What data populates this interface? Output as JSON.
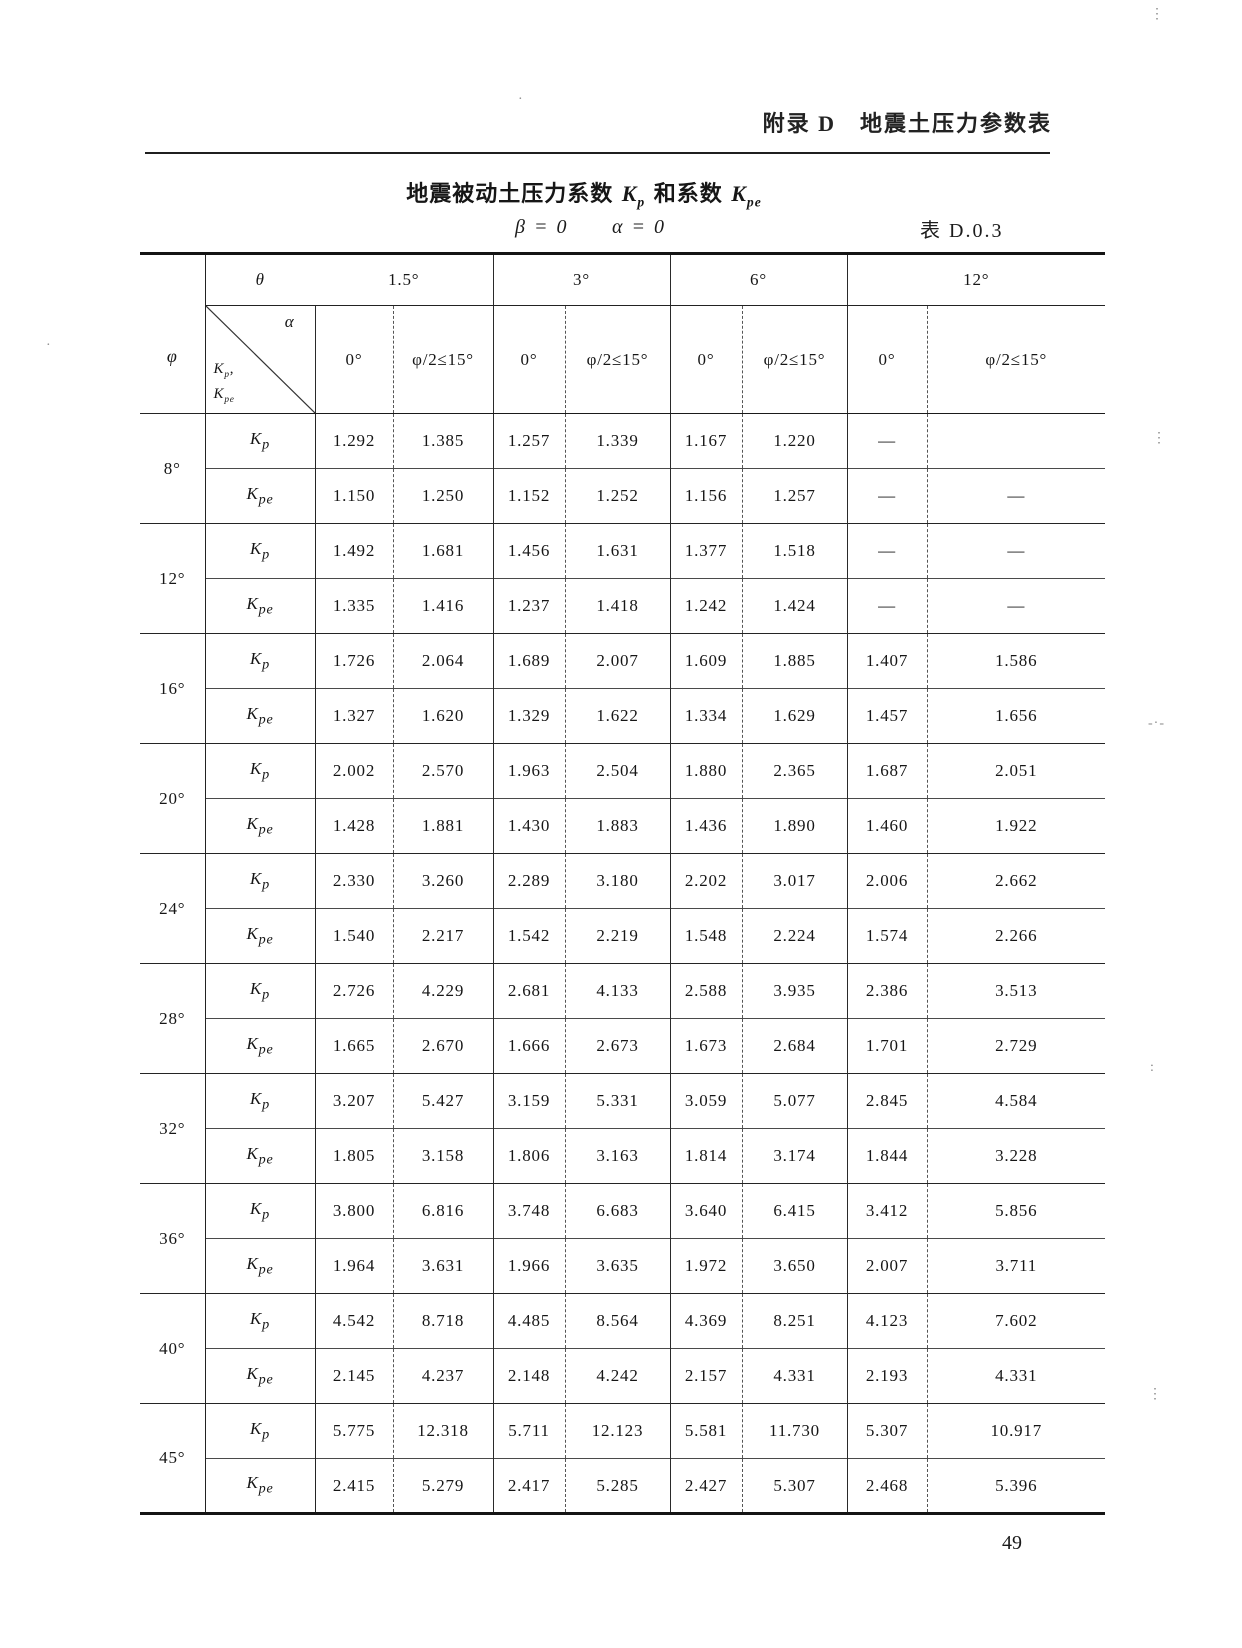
{
  "header": {
    "appendix_title": "附录 D　地震土压力参数表"
  },
  "page_number": "49",
  "table": {
    "title_prefix": "地震被动土压力系数",
    "title_mid": "和系数",
    "condition_beta": "β = 0",
    "condition_alpha": "α = 0",
    "table_no": "表 D.0.3",
    "corner": {
      "theta": "θ",
      "alpha": "α",
      "phi": "φ",
      "comma": ","
    },
    "coeff": {
      "kp": {
        "base": "K",
        "sub": "p"
      },
      "kpe": {
        "base": "K",
        "sub": "pe"
      }
    },
    "theta_values": [
      "1.5°",
      "3°",
      "6°",
      "12°"
    ],
    "alpha_values": [
      "0°",
      "φ/2≤15°"
    ],
    "rows": [
      {
        "phi": "8°",
        "kp": [
          "1.292",
          "1.385",
          "1.257",
          "1.339",
          "1.167",
          "1.220",
          "—",
          ""
        ],
        "kpe": [
          "1.150",
          "1.250",
          "1.152",
          "1.252",
          "1.156",
          "1.257",
          "—",
          "—"
        ]
      },
      {
        "phi": "12°",
        "kp": [
          "1.492",
          "1.681",
          "1.456",
          "1.631",
          "1.377",
          "1.518",
          "—",
          "—"
        ],
        "kpe": [
          "1.335",
          "1.416",
          "1.237",
          "1.418",
          "1.242",
          "1.424",
          "—",
          "—"
        ]
      },
      {
        "phi": "16°",
        "kp": [
          "1.726",
          "2.064",
          "1.689",
          "2.007",
          "1.609",
          "1.885",
          "1.407",
          "1.586"
        ],
        "kpe": [
          "1.327",
          "1.620",
          "1.329",
          "1.622",
          "1.334",
          "1.629",
          "1.457",
          "1.656"
        ]
      },
      {
        "phi": "20°",
        "kp": [
          "2.002",
          "2.570",
          "1.963",
          "2.504",
          "1.880",
          "2.365",
          "1.687",
          "2.051"
        ],
        "kpe": [
          "1.428",
          "1.881",
          "1.430",
          "1.883",
          "1.436",
          "1.890",
          "1.460",
          "1.922"
        ]
      },
      {
        "phi": "24°",
        "kp": [
          "2.330",
          "3.260",
          "2.289",
          "3.180",
          "2.202",
          "3.017",
          "2.006",
          "2.662"
        ],
        "kpe": [
          "1.540",
          "2.217",
          "1.542",
          "2.219",
          "1.548",
          "2.224",
          "1.574",
          "2.266"
        ]
      },
      {
        "phi": "28°",
        "kp": [
          "2.726",
          "4.229",
          "2.681",
          "4.133",
          "2.588",
          "3.935",
          "2.386",
          "3.513"
        ],
        "kpe": [
          "1.665",
          "2.670",
          "1.666",
          "2.673",
          "1.673",
          "2.684",
          "1.701",
          "2.729"
        ]
      },
      {
        "phi": "32°",
        "kp": [
          "3.207",
          "5.427",
          "3.159",
          "5.331",
          "3.059",
          "5.077",
          "2.845",
          "4.584"
        ],
        "kpe": [
          "1.805",
          "3.158",
          "1.806",
          "3.163",
          "1.814",
          "3.174",
          "1.844",
          "3.228"
        ]
      },
      {
        "phi": "36°",
        "kp": [
          "3.800",
          "6.816",
          "3.748",
          "6.683",
          "3.640",
          "6.415",
          "3.412",
          "5.856"
        ],
        "kpe": [
          "1.964",
          "3.631",
          "1.966",
          "3.635",
          "1.972",
          "3.650",
          "2.007",
          "3.711"
        ]
      },
      {
        "phi": "40°",
        "kp": [
          "4.542",
          "8.718",
          "4.485",
          "8.564",
          "4.369",
          "8.251",
          "4.123",
          "7.602"
        ],
        "kpe": [
          "2.145",
          "4.237",
          "2.148",
          "4.242",
          "2.157",
          "4.331",
          "2.193",
          "4.331"
        ]
      },
      {
        "phi": "45°",
        "kp": [
          "5.775",
          "12.318",
          "5.711",
          "12.123",
          "5.581",
          "11.730",
          "5.307",
          "10.917"
        ],
        "kpe": [
          "2.415",
          "5.279",
          "2.417",
          "5.285",
          "2.427",
          "5.307",
          "2.468",
          "5.396"
        ]
      }
    ]
  }
}
